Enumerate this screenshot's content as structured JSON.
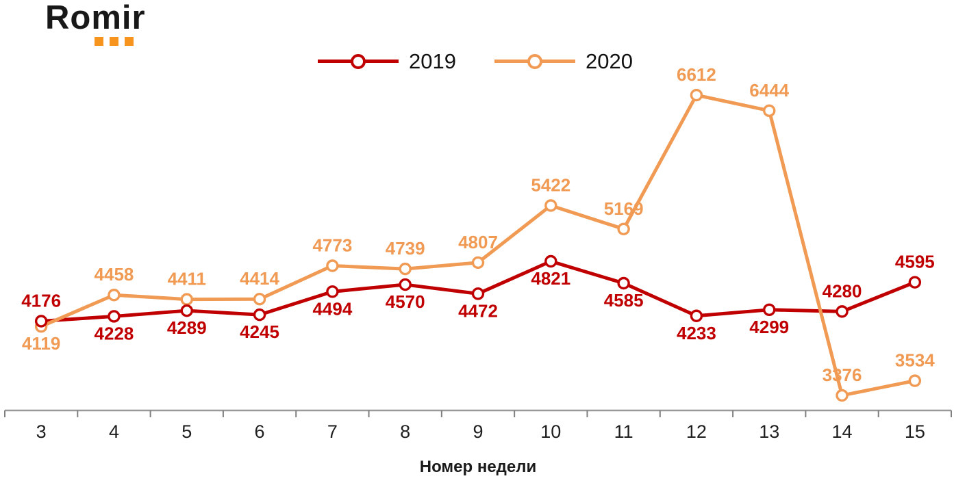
{
  "logo": {
    "brand": "Romir",
    "accent_color": "#F7941E",
    "text_color": "#181818"
  },
  "chart_data": {
    "type": "line",
    "x": [
      3,
      4,
      5,
      6,
      7,
      8,
      9,
      10,
      11,
      12,
      13,
      14,
      15
    ],
    "xlabel": "Номер недели",
    "ylabel": "",
    "title": "",
    "grid": false,
    "data_labels": true,
    "legend_position": "top-center",
    "ylim": [
      3200,
      6700
    ],
    "axis_color": "#999999",
    "tick_color": "#7F7F7F",
    "tick_label_color": "#1F1F1F",
    "axis_title_color": "#1A1A1A",
    "marker_fill": "#FFFFFF",
    "series": [
      {
        "name": "2019",
        "color": "#C00000",
        "values": [
          4176,
          4228,
          4289,
          4245,
          4494,
          4570,
          4472,
          4821,
          4585,
          4233,
          4299,
          4280,
          4595
        ],
        "label_positions": [
          "above",
          "below",
          "below",
          "below",
          "below",
          "below",
          "below",
          "below",
          "below",
          "below",
          "below",
          "above",
          "above"
        ]
      },
      {
        "name": "2020",
        "color": "#F09A54",
        "values": [
          4119,
          4458,
          4411,
          4414,
          4773,
          4739,
          4807,
          5422,
          5169,
          6612,
          6444,
          3376,
          3534
        ],
        "label_positions": [
          "below",
          "above",
          "above",
          "above",
          "above",
          "above",
          "above",
          "above",
          "above",
          "above",
          "above",
          "above",
          "above"
        ]
      }
    ]
  }
}
